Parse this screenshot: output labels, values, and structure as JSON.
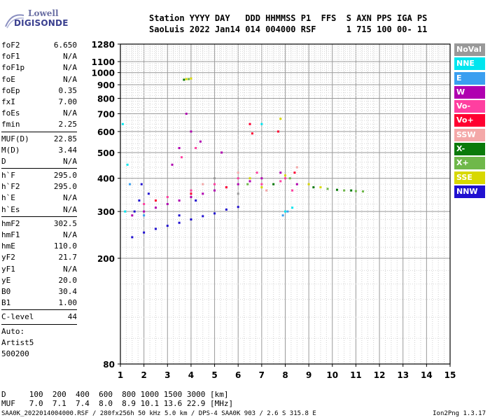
{
  "logo": {
    "line1": "Lowell",
    "line2": "DIGISONDE"
  },
  "header": {
    "line1": "Station YYYY DAY   DDD HHMMSS P1  FFS  S AXN PPS IGA PS",
    "line2": "SaoLuis 2022 Jan14 014 004000 RSF      1 715 100 00- 11"
  },
  "params": {
    "group1": [
      {
        "label": "foF2",
        "value": "6.650"
      },
      {
        "label": "foF1",
        "value": "N/A"
      },
      {
        "label": "foF1p",
        "value": "N/A"
      },
      {
        "label": "foE",
        "value": "N/A"
      },
      {
        "label": "foEp",
        "value": "0.35"
      },
      {
        "label": "fxI",
        "value": "7.00"
      },
      {
        "label": "foEs",
        "value": "N/A"
      },
      {
        "label": "fmin",
        "value": "2.25"
      }
    ],
    "group2": [
      {
        "label": "MUF(D)",
        "value": "22.85"
      },
      {
        "label": "M(D)",
        "value": "3.44"
      },
      {
        "label": "D",
        "value": "N/A"
      }
    ],
    "group3": [
      {
        "label": "h`F",
        "value": "295.0"
      },
      {
        "label": "h`F2",
        "value": "295.0"
      },
      {
        "label": "h`E",
        "value": "N/A"
      },
      {
        "label": "h`Es",
        "value": "N/A"
      }
    ],
    "group4": [
      {
        "label": "hmF2",
        "value": "302.5"
      },
      {
        "label": "hmF1",
        "value": "N/A"
      },
      {
        "label": "hmE",
        "value": "110.0"
      },
      {
        "label": "yF2",
        "value": "21.7"
      },
      {
        "label": "yF1",
        "value": "N/A"
      },
      {
        "label": "yE",
        "value": "20.0"
      },
      {
        "label": "B0",
        "value": "30.4"
      },
      {
        "label": "B1",
        "value": "1.00"
      }
    ],
    "clevel": {
      "label": "C-level",
      "value": "44"
    },
    "auto": [
      "Auto:",
      "Artist5",
      "500200"
    ]
  },
  "legend": [
    {
      "label": "NoVal",
      "color": "#999999"
    },
    {
      "label": "NNE",
      "color": "#00e5ee"
    },
    {
      "label": "E",
      "color": "#3a9ff0"
    },
    {
      "label": "W",
      "color": "#b000b0"
    },
    {
      "label": "Vo-",
      "color": "#ff3fa0"
    },
    {
      "label": "Vo+",
      "color": "#ff0030"
    },
    {
      "label": "SSW",
      "color": "#f4a8a8"
    },
    {
      "label": "X-",
      "color": "#0a7a0a"
    },
    {
      "label": "X+",
      "color": "#6fb84a"
    },
    {
      "label": "SSE",
      "color": "#d8d800"
    },
    {
      "label": "NNW",
      "color": "#2010d0"
    }
  ],
  "footer": {
    "line1": "D     100  200  400  600  800 1000 1500 3000 [km]",
    "line2": "MUF   7.0  7.1  7.4  8.0  8.9 10.1 13.6 22.9 [MHz]",
    "line3": "SAA0K_2022014004000.RSF / 280fx256h 50 kHz 5.0 km / DPS-4 SAA0K 903 / 2.6 S 315.8 E",
    "version": "Ion2Png 1.3.17"
  },
  "chart_data": {
    "type": "scatter",
    "xlim": [
      1,
      15
    ],
    "ylim": [
      80,
      1280
    ],
    "x_ticks": [
      1,
      2,
      3,
      4,
      5,
      6,
      7,
      8,
      9,
      10,
      11,
      12,
      13,
      14,
      15
    ],
    "y_ticks": [
      80,
      200,
      300,
      400,
      500,
      600,
      700,
      800,
      900,
      1000,
      1100,
      1280
    ],
    "y_scale": "log",
    "grid": true,
    "series": [
      {
        "name": "NNW",
        "color": "#2010d0",
        "points": [
          [
            1.5,
            240
          ],
          [
            2.0,
            250
          ],
          [
            2.5,
            258
          ],
          [
            3.0,
            265
          ],
          [
            3.5,
            272
          ],
          [
            4.0,
            280
          ],
          [
            4.5,
            288
          ],
          [
            5.0,
            295
          ],
          [
            5.5,
            305
          ],
          [
            6.0,
            312
          ],
          [
            1.8,
            330
          ],
          [
            1.6,
            300
          ],
          [
            2.2,
            350
          ],
          [
            1.9,
            380
          ],
          [
            3.5,
            290
          ],
          [
            4.2,
            330
          ]
        ]
      },
      {
        "name": "W",
        "color": "#b000b0",
        "points": [
          [
            1.5,
            290
          ],
          [
            2.0,
            300
          ],
          [
            2.5,
            310
          ],
          [
            3.0,
            320
          ],
          [
            3.5,
            330
          ],
          [
            4.0,
            340
          ],
          [
            4.5,
            350
          ],
          [
            5.0,
            360
          ],
          [
            5.5,
            370
          ],
          [
            6.0,
            380
          ],
          [
            6.5,
            390
          ],
          [
            7.0,
            400
          ],
          [
            3.2,
            450
          ],
          [
            3.5,
            520
          ],
          [
            4.0,
            600
          ],
          [
            3.8,
            700
          ],
          [
            4.4,
            550
          ],
          [
            5.3,
            500
          ],
          [
            7.8,
            420
          ],
          [
            8.5,
            380
          ]
        ]
      },
      {
        "name": "Vo-",
        "color": "#ff3fa0",
        "points": [
          [
            2.0,
            320
          ],
          [
            3.0,
            340
          ],
          [
            4.0,
            360
          ],
          [
            5.0,
            380
          ],
          [
            6.0,
            400
          ],
          [
            6.8,
            420
          ],
          [
            7.0,
            380
          ],
          [
            7.8,
            390
          ],
          [
            8.0,
            400
          ],
          [
            8.3,
            360
          ],
          [
            3.6,
            480
          ],
          [
            4.2,
            520
          ]
        ]
      },
      {
        "name": "Vo+",
        "color": "#ff0030",
        "points": [
          [
            2.5,
            330
          ],
          [
            4.0,
            350
          ],
          [
            5.5,
            370
          ],
          [
            6.5,
            640
          ],
          [
            6.6,
            590
          ],
          [
            7.7,
            600
          ],
          [
            8.4,
            420
          ]
        ]
      },
      {
        "name": "SSE",
        "color": "#d8d800",
        "points": [
          [
            3.8,
            945
          ],
          [
            4.0,
            950
          ],
          [
            6.5,
            400
          ],
          [
            7.0,
            370
          ],
          [
            7.8,
            670
          ],
          [
            8.0,
            410
          ],
          [
            9.0,
            380
          ],
          [
            9.5,
            370
          ]
        ]
      },
      {
        "name": "X+",
        "color": "#6fb84a",
        "points": [
          [
            3.9,
            945
          ],
          [
            6.4,
            380
          ],
          [
            8.2,
            400
          ],
          [
            9.8,
            365
          ],
          [
            10.5,
            360
          ],
          [
            11.0,
            358
          ],
          [
            11.3,
            357
          ]
        ]
      },
      {
        "name": "X-",
        "color": "#0a7a0a",
        "points": [
          [
            3.7,
            940
          ],
          [
            7.5,
            380
          ],
          [
            9.2,
            370
          ],
          [
            10.2,
            362
          ],
          [
            10.8,
            360
          ]
        ]
      },
      {
        "name": "NNE",
        "color": "#00e5ee",
        "points": [
          [
            1.1,
            640
          ],
          [
            1.3,
            450
          ],
          [
            1.2,
            300
          ],
          [
            7.0,
            640
          ],
          [
            8.0,
            300
          ],
          [
            8.3,
            310
          ]
        ]
      },
      {
        "name": "E",
        "color": "#3a9ff0",
        "points": [
          [
            1.4,
            380
          ],
          [
            2.0,
            290
          ],
          [
            7.9,
            290
          ],
          [
            8.1,
            300
          ]
        ]
      },
      {
        "name": "SSW",
        "color": "#f4a8a8",
        "points": [
          [
            4.5,
            380
          ],
          [
            6.0,
            420
          ],
          [
            7.2,
            360
          ],
          [
            8.5,
            440
          ]
        ]
      },
      {
        "name": "NoVal",
        "color": "#999999",
        "points": [
          [
            5.0,
            400
          ],
          [
            6.0,
            350
          ]
        ]
      }
    ]
  }
}
